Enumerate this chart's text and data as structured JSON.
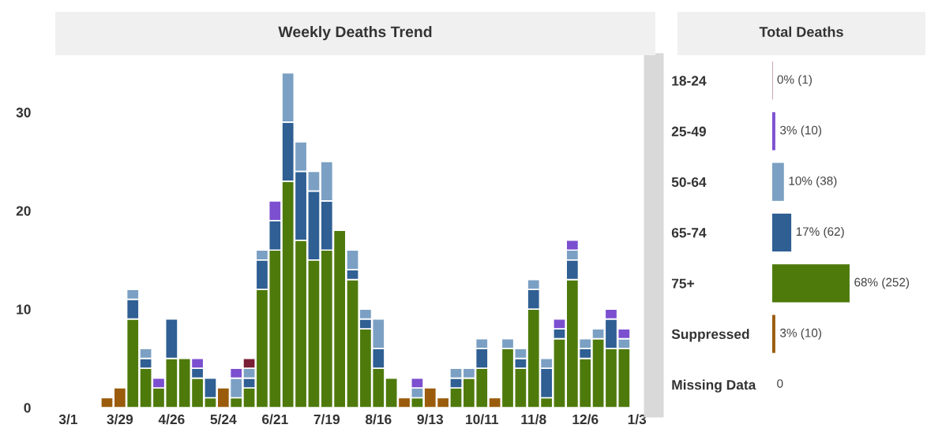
{
  "chart_data": [
    {
      "type": "bar",
      "title": "Weekly Deaths Trend",
      "stacked": true,
      "categories": [
        "3/1",
        null,
        null,
        null,
        "3/29",
        null,
        null,
        null,
        "4/26",
        null,
        null,
        null,
        "5/24",
        null,
        null,
        null,
        "6/21",
        null,
        null,
        null,
        "7/19",
        null,
        null,
        null,
        "8/16",
        null,
        null,
        null,
        "9/13",
        null,
        null,
        null,
        "10/11",
        null,
        null,
        null,
        "11/8",
        null,
        null,
        null,
        "12/6",
        null,
        null,
        null,
        "1/3"
      ],
      "ylim": [
        0,
        35
      ],
      "yticks": [
        0,
        10,
        20,
        30
      ],
      "grid": false,
      "series": [
        {
          "color": "#4e7a0c",
          "values": [
            null,
            null,
            null,
            null,
            null,
            9,
            4,
            2,
            5,
            5,
            3,
            1,
            null,
            1,
            2,
            12,
            16,
            23,
            17,
            15,
            16,
            18,
            13,
            8,
            4,
            3,
            null,
            1,
            null,
            null,
            2,
            3,
            4,
            null,
            6,
            4,
            10,
            1,
            7,
            13,
            5,
            7,
            6,
            6,
            null
          ]
        },
        {
          "color": "#2f5f93",
          "values": [
            null,
            null,
            null,
            null,
            null,
            2,
            1,
            null,
            4,
            null,
            1,
            2,
            null,
            null,
            1,
            3,
            3,
            6,
            7,
            7,
            5,
            null,
            1,
            1,
            2,
            null,
            null,
            null,
            null,
            null,
            1,
            null,
            2,
            null,
            null,
            1,
            2,
            3,
            1,
            2,
            1,
            null,
            3,
            null,
            null
          ]
        },
        {
          "color": "#7ba0c4",
          "values": [
            null,
            null,
            null,
            null,
            null,
            1,
            1,
            null,
            null,
            null,
            null,
            null,
            null,
            2,
            1,
            1,
            null,
            5,
            3,
            2,
            4,
            null,
            2,
            1,
            3,
            null,
            null,
            1,
            null,
            null,
            1,
            1,
            1,
            null,
            1,
            1,
            1,
            1,
            null,
            1,
            1,
            1,
            null,
            1,
            null
          ]
        },
        {
          "color": "#7b4fcf",
          "values": [
            null,
            null,
            null,
            null,
            null,
            null,
            null,
            1,
            null,
            null,
            1,
            null,
            null,
            1,
            null,
            null,
            2,
            null,
            null,
            null,
            null,
            null,
            null,
            null,
            null,
            null,
            null,
            1,
            null,
            null,
            null,
            null,
            null,
            null,
            null,
            null,
            null,
            null,
            1,
            1,
            null,
            null,
            1,
            1,
            null
          ]
        },
        {
          "color": "#7a1f33",
          "values": [
            null,
            null,
            null,
            null,
            null,
            null,
            null,
            null,
            null,
            null,
            null,
            null,
            null,
            null,
            1,
            null,
            null,
            null,
            null,
            null,
            null,
            null,
            null,
            null,
            null,
            null,
            null,
            null,
            null,
            null,
            null,
            null,
            null,
            null,
            null,
            null,
            null,
            null,
            null,
            null,
            null,
            null,
            null,
            null,
            null
          ]
        },
        {
          "color": "#9a5c0c",
          "values": [
            null,
            null,
            null,
            1,
            2,
            null,
            null,
            null,
            null,
            null,
            null,
            null,
            2,
            null,
            null,
            null,
            null,
            null,
            null,
            null,
            null,
            null,
            null,
            null,
            null,
            null,
            1,
            null,
            2,
            1,
            null,
            null,
            null,
            1,
            null,
            null,
            null,
            null,
            null,
            null,
            null,
            null,
            null,
            null,
            null
          ]
        }
      ]
    },
    {
      "type": "bar",
      "title": "Total Deaths",
      "orientation": "horizontal",
      "categories": [
        "18-24",
        "25-49",
        "50-64",
        "65-74",
        "75+",
        "Suppressed",
        "Missing Data"
      ],
      "values": [
        1,
        10,
        38,
        62,
        252,
        10,
        0
      ],
      "colors": [
        "#7a1f33",
        "#7b4fcf",
        "#7ba0c4",
        "#2f5f93",
        "#4e7a0c",
        "#9a5c0c",
        "#9a5c0c"
      ],
      "value_labels": [
        "0% (1)",
        "3% (10)",
        "10% (38)",
        "17% (62)",
        "68% (252)",
        "3% (10)",
        "0"
      ]
    }
  ]
}
